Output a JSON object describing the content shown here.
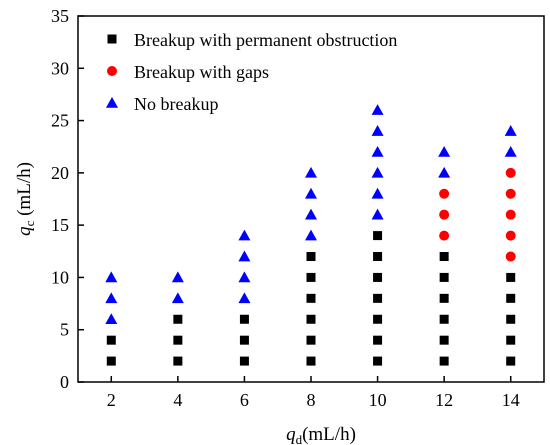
{
  "chart_data": {
    "type": "scatter",
    "title": "",
    "xlabel": {
      "var": "q",
      "sub": "d",
      "unit": "(mL/h)"
    },
    "ylabel": {
      "var": "q",
      "sub": "c",
      "unit": " (mL/h)"
    },
    "xlim": [
      1,
      15
    ],
    "ylim": [
      0,
      35
    ],
    "xticks": [
      2,
      4,
      6,
      8,
      10,
      12,
      14
    ],
    "yticks": [
      0,
      5,
      10,
      15,
      20,
      25,
      30,
      35
    ],
    "grid": false,
    "legend_position": "top-left",
    "series": [
      {
        "name": "Breakup with permanent obstruction",
        "marker": "square",
        "color": "#000000",
        "points": [
          [
            2,
            2
          ],
          [
            2,
            4
          ],
          [
            4,
            2
          ],
          [
            4,
            4
          ],
          [
            4,
            6
          ],
          [
            6,
            2
          ],
          [
            6,
            4
          ],
          [
            6,
            6
          ],
          [
            8,
            2
          ],
          [
            8,
            4
          ],
          [
            8,
            6
          ],
          [
            8,
            8
          ],
          [
            8,
            10
          ],
          [
            8,
            12
          ],
          [
            10,
            2
          ],
          [
            10,
            4
          ],
          [
            10,
            6
          ],
          [
            10,
            8
          ],
          [
            10,
            10
          ],
          [
            10,
            12
          ],
          [
            10,
            14
          ],
          [
            12,
            2
          ],
          [
            12,
            4
          ],
          [
            12,
            6
          ],
          [
            12,
            8
          ],
          [
            12,
            10
          ],
          [
            12,
            12
          ],
          [
            14,
            2
          ],
          [
            14,
            4
          ],
          [
            14,
            6
          ],
          [
            14,
            8
          ],
          [
            14,
            10
          ]
        ]
      },
      {
        "name": "Breakup with gaps",
        "marker": "circle",
        "color": "#ff0000",
        "points": [
          [
            12,
            14
          ],
          [
            12,
            16
          ],
          [
            12,
            18
          ],
          [
            14,
            12
          ],
          [
            14,
            14
          ],
          [
            14,
            16
          ],
          [
            14,
            18
          ],
          [
            14,
            20
          ]
        ]
      },
      {
        "name": "No breakup",
        "marker": "triangle",
        "color": "#0000ff",
        "points": [
          [
            2,
            6
          ],
          [
            2,
            8
          ],
          [
            2,
            10
          ],
          [
            4,
            8
          ],
          [
            4,
            10
          ],
          [
            6,
            8
          ],
          [
            6,
            10
          ],
          [
            6,
            12
          ],
          [
            6,
            14
          ],
          [
            8,
            14
          ],
          [
            8,
            16
          ],
          [
            8,
            18
          ],
          [
            8,
            20
          ],
          [
            10,
            16
          ],
          [
            10,
            18
          ],
          [
            10,
            20
          ],
          [
            10,
            22
          ],
          [
            10,
            24
          ],
          [
            10,
            26
          ],
          [
            12,
            20
          ],
          [
            12,
            22
          ],
          [
            14,
            22
          ],
          [
            14,
            24
          ]
        ]
      }
    ]
  }
}
